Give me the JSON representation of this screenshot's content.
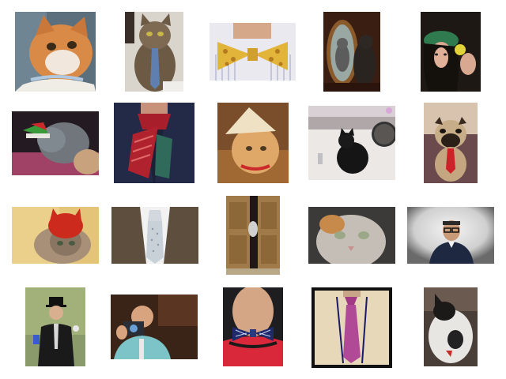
{
  "gallery": {
    "tiles": [
      {
        "subject": "cat-with-collar"
      },
      {
        "subject": "cat-wearing-tie"
      },
      {
        "subject": "yellow-bow-tie"
      },
      {
        "subject": "cat-in-mirror"
      },
      {
        "subject": "woman-with-lemon"
      },
      {
        "subject": "cat-in-elf-hat"
      },
      {
        "subject": "man-in-red-cravat"
      },
      {
        "subject": "cat-in-straw-hat"
      },
      {
        "subject": "cat-in-sink"
      },
      {
        "subject": "pug-in-red-tie"
      },
      {
        "subject": "cat-in-red-knit-hat"
      },
      {
        "subject": "silver-tie-and-vest"
      },
      {
        "subject": "cat-peeking-through-door"
      },
      {
        "subject": "cat-face-closeup"
      },
      {
        "subject": "man-with-glasses"
      },
      {
        "subject": "man-in-top-hat"
      },
      {
        "subject": "man-with-camera"
      },
      {
        "subject": "navy-bow-tie"
      },
      {
        "subject": "pink-tie-with-lanyard"
      },
      {
        "subject": "black-and-white-cat"
      }
    ]
  }
}
